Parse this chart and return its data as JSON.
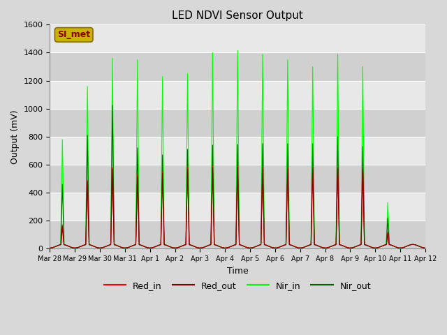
{
  "title": "LED NDVI Sensor Output",
  "xlabel": "Time",
  "ylabel": "Output (mV)",
  "ylim": [
    0,
    1600
  ],
  "yticks": [
    0,
    200,
    400,
    600,
    800,
    1000,
    1200,
    1400,
    1600
  ],
  "figure_bg": "#d8d8d8",
  "axes_bg": "#e8e8e8",
  "legend_label": "SI_met",
  "legend_box_facecolor": "#c8b400",
  "legend_box_edgecolor": "#8b6914",
  "legend_text_color": "#8b0000",
  "series_colors": {
    "Red_in": "#ff0000",
    "Red_out": "#800000",
    "Nir_in": "#00ff00",
    "Nir_out": "#006400"
  },
  "x_tick_labels": [
    "Mar 28",
    "Mar 29",
    "Mar 30",
    "Mar 31",
    "Apr 1",
    "Apr 2",
    "Apr 3",
    "Apr 4",
    "Apr 5",
    "Apr 6",
    "Apr 7",
    "Apr 8",
    "Apr 9",
    "Apr 10",
    "Apr 11",
    "Apr 12"
  ],
  "num_days": 15,
  "daily_peaks": {
    "Red_in": [
      170,
      490,
      580,
      530,
      550,
      580,
      590,
      590,
      580,
      580,
      580,
      580,
      580,
      120,
      0
    ],
    "Red_out": [
      160,
      480,
      570,
      515,
      540,
      570,
      580,
      580,
      570,
      570,
      570,
      570,
      570,
      110,
      0
    ],
    "Nir_in": [
      780,
      1160,
      1360,
      1350,
      1230,
      1250,
      1400,
      1415,
      1390,
      1350,
      1300,
      1390,
      1300,
      330,
      0
    ],
    "Nir_out": [
      460,
      810,
      1025,
      720,
      670,
      710,
      740,
      745,
      750,
      750,
      750,
      800,
      730,
      220,
      0
    ]
  },
  "baseline": 5,
  "baseline_bump": 25,
  "grid_colors": [
    "#d0d0d0",
    "#e8e8e8"
  ]
}
